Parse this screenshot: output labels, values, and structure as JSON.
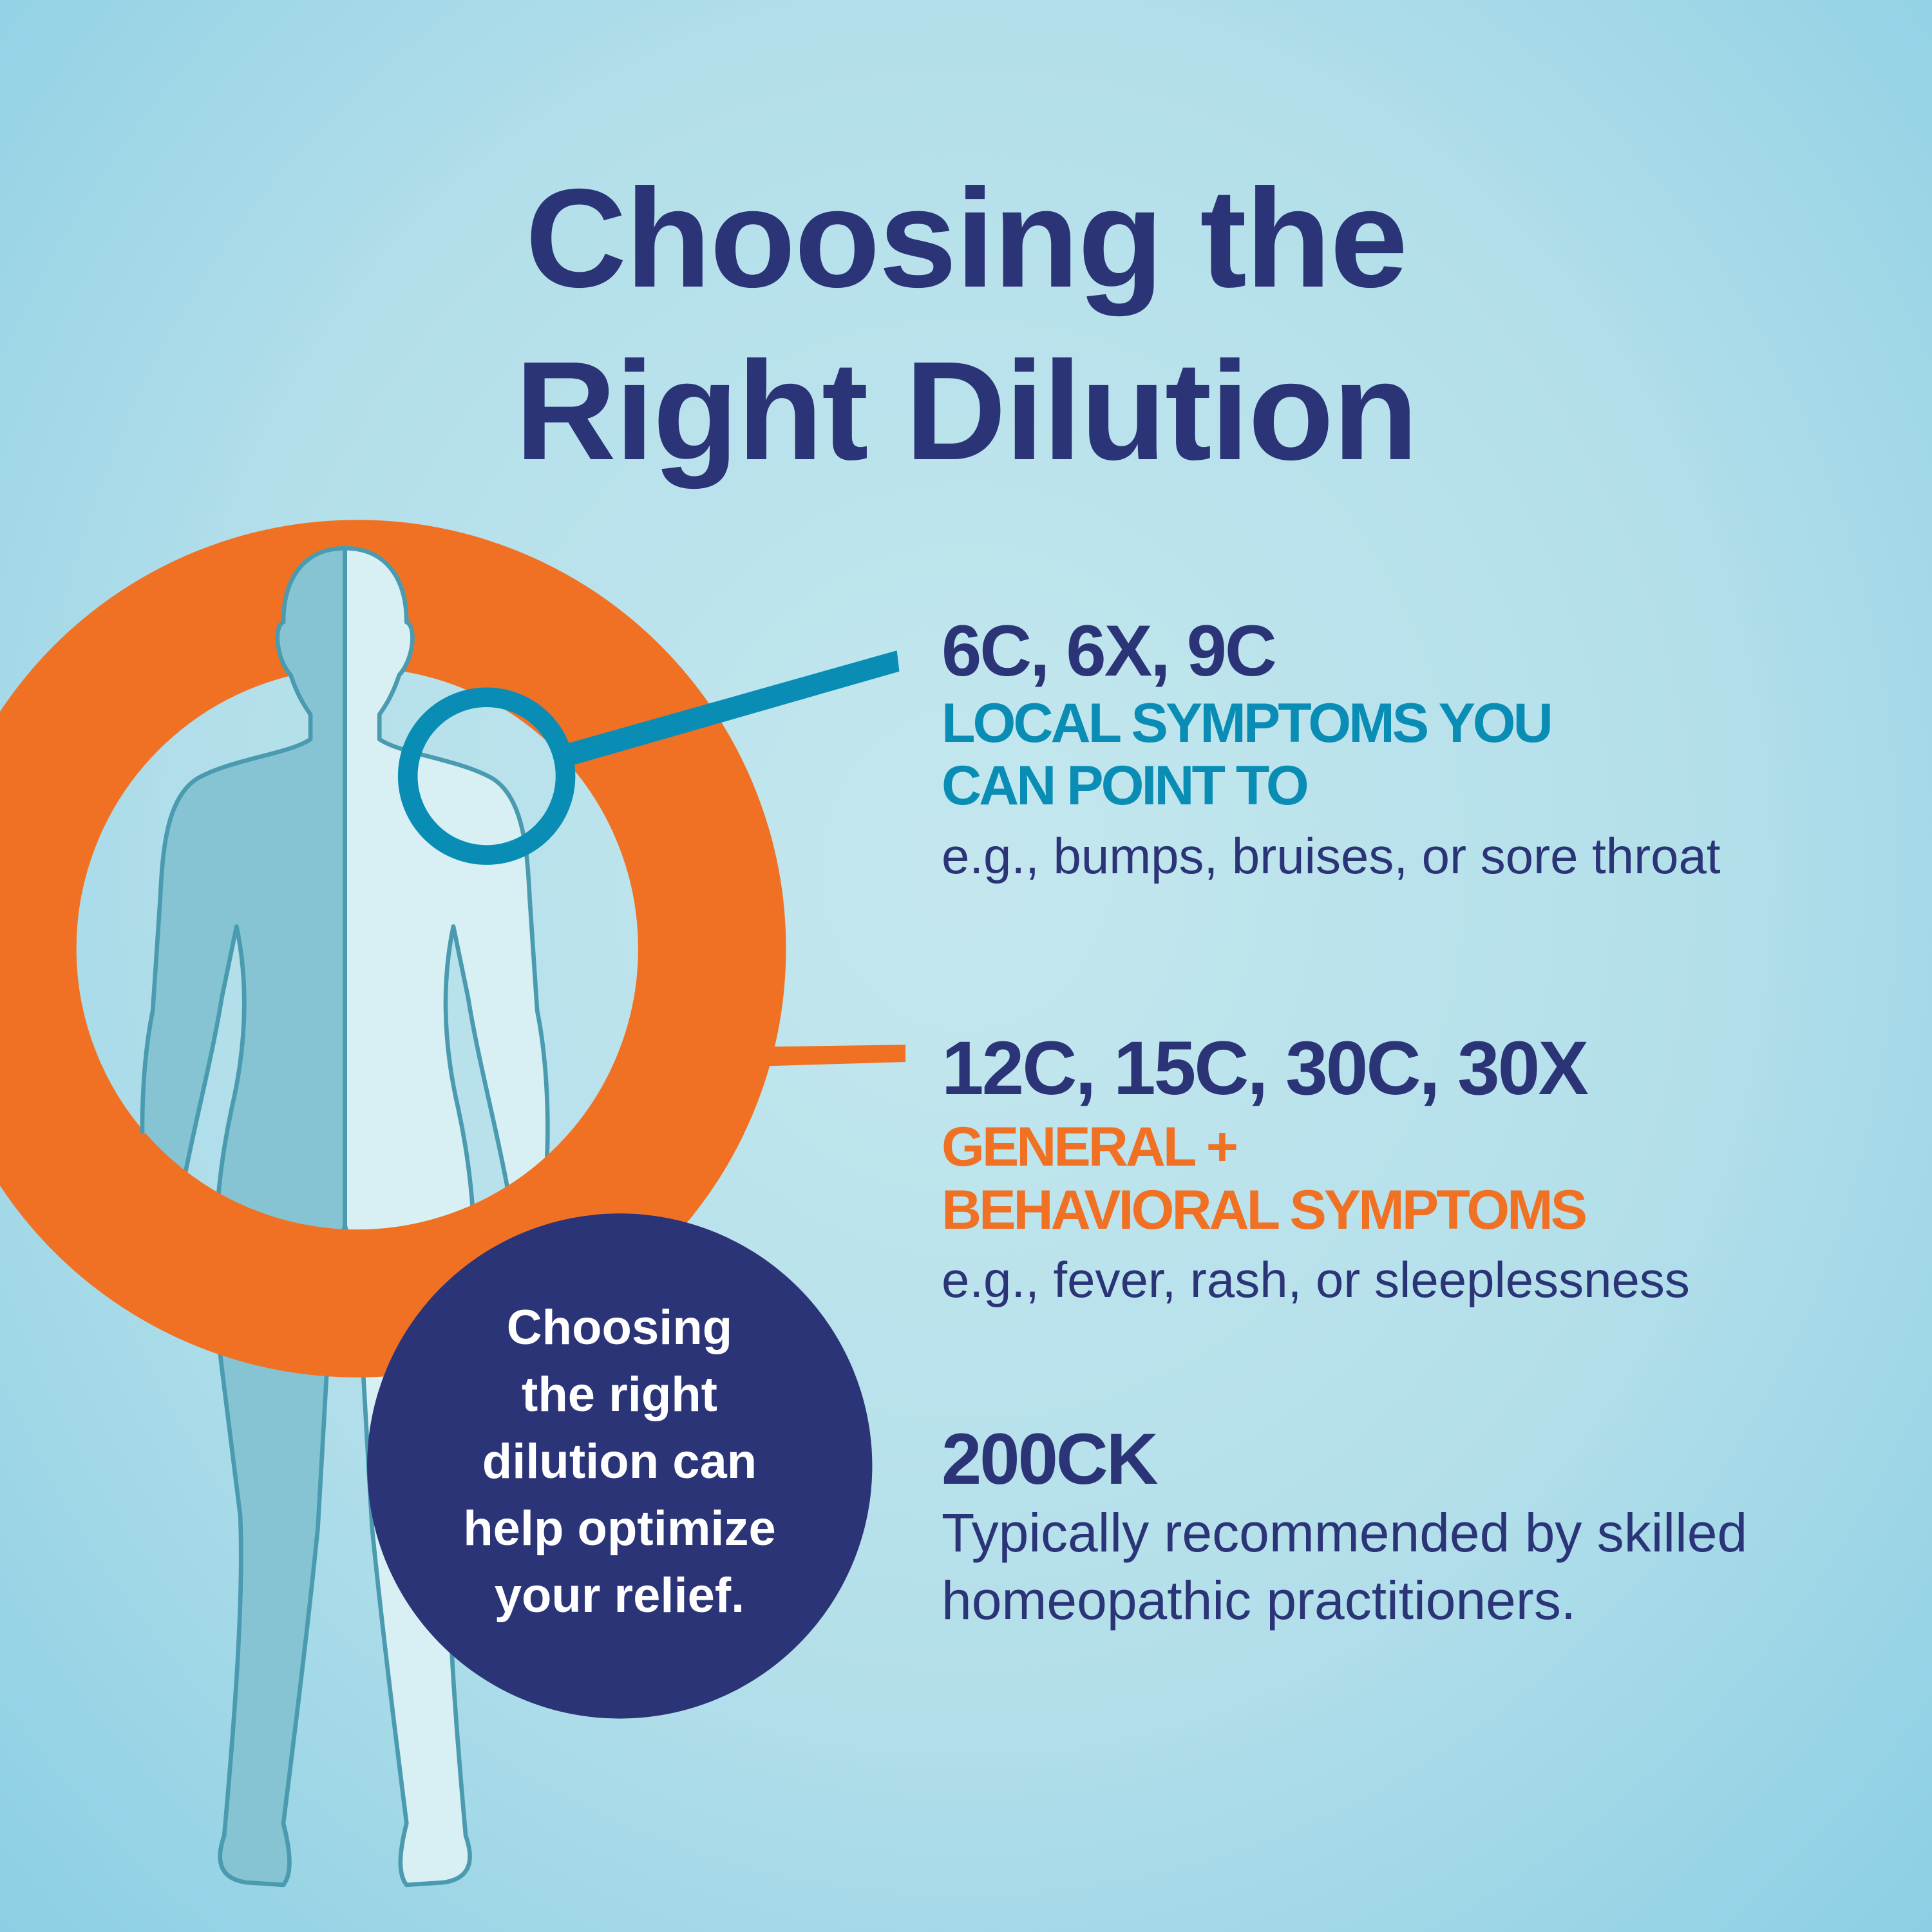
{
  "title": {
    "line1": "Choosing the",
    "line2": "Right Dilution"
  },
  "sections": [
    {
      "dilutions": "6C, 6X, 9C",
      "category_line1": "LOCAL SYMPTOMS YOU",
      "category_line2": "CAN POINT TO",
      "examples": "e.g., bumps, bruises, or sore throat",
      "accent": "#0a8db5"
    },
    {
      "dilutions": "12C, 15C, 30C, 30X",
      "category_line1": "GENERAL +",
      "category_line2": "BEHAVIORAL SYMPTOMS",
      "examples": "e.g., fever, rash, or sleeplessness",
      "accent": "#f07124"
    },
    {
      "dilutions": "200CK",
      "description_line1": "Typically recommended by skilled",
      "description_line2": "homeopathic practitioners."
    }
  ],
  "callout": {
    "line1": "Choosing",
    "line2": "the right",
    "line3": "dilution can",
    "line4": "help optimize",
    "line5": "your relief."
  },
  "colors": {
    "navy": "#2b3477",
    "teal": "#0a8db5",
    "orange": "#f07124",
    "body_dark": "#86c4d3",
    "body_light": "#d8eff4"
  }
}
